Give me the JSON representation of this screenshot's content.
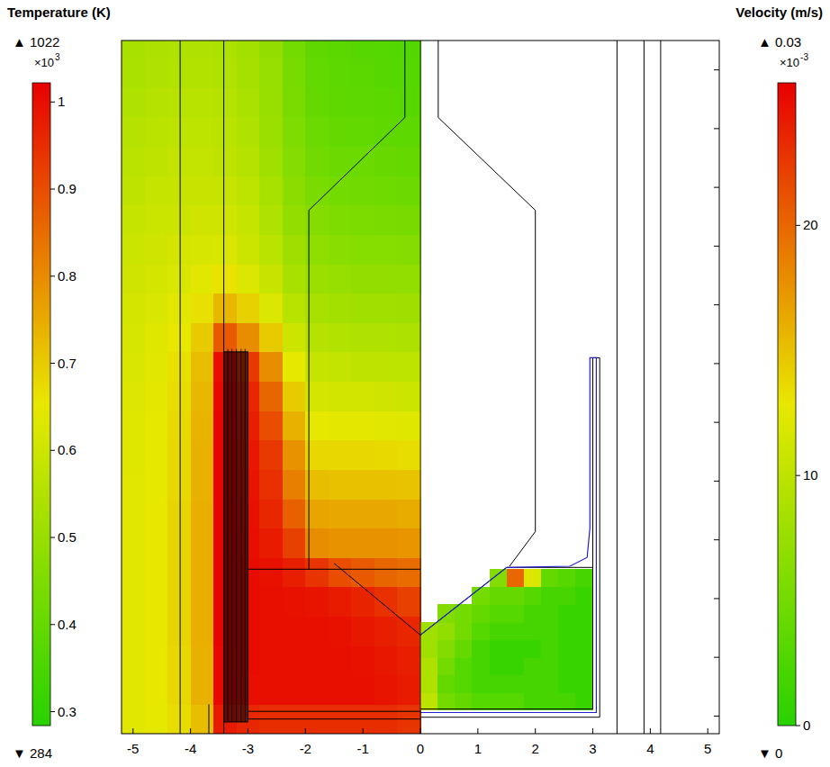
{
  "chart_data": {
    "type": "heatmap",
    "xlim": [
      -5.2,
      5.2
    ],
    "xticks": [
      -5,
      -4,
      -3,
      -2,
      -1,
      0,
      1,
      2,
      3,
      4,
      5
    ],
    "ylim": [
      -0.3,
      11.5
    ],
    "yticks": [
      0,
      1,
      2,
      3,
      4,
      5,
      6,
      7,
      8,
      9,
      10,
      11
    ],
    "tick_labels": "x",
    "temperature": {
      "title": "Temperature (K)",
      "range": [
        284,
        1022
      ],
      "range_labels": [
        "▼ 284",
        "▲ 1022"
      ],
      "multiplier": "×10",
      "exponent": "3",
      "ticks": [
        {
          "value": 300,
          "label": "0.3"
        },
        {
          "value": 400,
          "label": "0.4"
        },
        {
          "value": 500,
          "label": "0.5"
        },
        {
          "value": 600,
          "label": "0.6"
        },
        {
          "value": 700,
          "label": "0.7"
        },
        {
          "value": 800,
          "label": "0.8"
        },
        {
          "value": 900,
          "label": "0.9"
        },
        {
          "value": 1000,
          "label": "1"
        }
      ],
      "x_edges": [
        -5.2,
        -4.8,
        -4.4,
        -4.0,
        -3.6,
        -3.2,
        -2.8,
        -2.4,
        -2.0,
        -1.6,
        -1.2,
        -0.8,
        -0.4,
        0
      ],
      "y_edges": [
        -0.3,
        0.2,
        0.7,
        1.2,
        1.7,
        2.2,
        2.7,
        3.2,
        3.7,
        4.2,
        4.7,
        5.2,
        5.7,
        6.2,
        6.7,
        7.2,
        7.7,
        8.2,
        8.7,
        9.2,
        9.7,
        10.2,
        10.7,
        11.2,
        11.5
      ],
      "cells": [
        [
          640,
          650,
          670,
          720,
          980,
          960,
          950,
          950,
          950,
          950,
          950,
          950,
          940
        ],
        [
          640,
          655,
          680,
          740,
          1010,
          1000,
          1000,
          1000,
          1000,
          1000,
          1000,
          990,
          980
        ],
        [
          640,
          655,
          680,
          740,
          1010,
          1005,
          1000,
          1000,
          1000,
          1000,
          995,
          985,
          975
        ],
        [
          640,
          655,
          685,
          745,
          1015,
          1005,
          1000,
          1000,
          1000,
          995,
          985,
          975,
          960
        ],
        [
          640,
          655,
          685,
          745,
          1015,
          1005,
          1000,
          995,
          990,
          980,
          965,
          945,
          920
        ],
        [
          640,
          655,
          685,
          745,
          1015,
          1005,
          995,
          975,
          940,
          900,
          880,
          860,
          850
        ],
        [
          640,
          655,
          685,
          745,
          1015,
          1000,
          980,
          920,
          800,
          790,
          790,
          790,
          785
        ],
        [
          640,
          655,
          685,
          745,
          1015,
          995,
          960,
          870,
          760,
          755,
          755,
          755,
          750
        ],
        [
          640,
          650,
          680,
          740,
          1015,
          990,
          945,
          820,
          720,
          715,
          715,
          715,
          710
        ],
        [
          635,
          650,
          680,
          740,
          1015,
          985,
          930,
          790,
          680,
          680,
          680,
          675,
          670
        ],
        [
          635,
          650,
          675,
          735,
          1015,
          975,
          900,
          740,
          650,
          645,
          645,
          640,
          635
        ],
        [
          630,
          645,
          670,
          730,
          1010,
          960,
          860,
          700,
          615,
          610,
          610,
          605,
          600
        ],
        [
          625,
          640,
          665,
          720,
          1000,
          930,
          800,
          650,
          585,
          580,
          575,
          575,
          570
        ],
        [
          620,
          635,
          655,
          700,
          880,
          800,
          700,
          600,
          555,
          550,
          545,
          545,
          540
        ],
        [
          615,
          625,
          640,
          665,
          730,
          690,
          630,
          560,
          530,
          520,
          515,
          515,
          510
        ],
        [
          605,
          615,
          625,
          640,
          660,
          630,
          590,
          530,
          505,
          495,
          490,
          490,
          485
        ],
        [
          595,
          605,
          615,
          620,
          625,
          600,
          565,
          510,
          480,
          470,
          465,
          465,
          460
        ],
        [
          585,
          595,
          600,
          605,
          605,
          585,
          545,
          490,
          460,
          450,
          445,
          440,
          435
        ],
        [
          575,
          585,
          590,
          590,
          590,
          570,
          530,
          475,
          440,
          430,
          425,
          420,
          415
        ],
        [
          565,
          575,
          580,
          580,
          575,
          555,
          515,
          460,
          425,
          415,
          410,
          405,
          400
        ],
        [
          555,
          565,
          570,
          570,
          565,
          545,
          505,
          450,
          410,
          400,
          395,
          390,
          385
        ],
        [
          545,
          555,
          560,
          560,
          555,
          535,
          500,
          440,
          400,
          390,
          385,
          380,
          375
        ],
        [
          535,
          545,
          550,
          550,
          545,
          525,
          495,
          435,
          395,
          385,
          380,
          375,
          370
        ],
        [
          530,
          540,
          545,
          545,
          540,
          520,
          490,
          430,
          390,
          380,
          375,
          370,
          365
        ]
      ]
    },
    "velocity": {
      "title": "Velocity (m/s)",
      "range": [
        0,
        0.0257
      ],
      "range_labels": [
        "▼ 0",
        "▲ 0.03"
      ],
      "multiplier": "×10",
      "exponent": "-3",
      "ticks": [
        {
          "value": 0,
          "label": "0"
        },
        {
          "value": 0.01,
          "label": "10"
        },
        {
          "value": 0.02,
          "label": "20"
        }
      ],
      "x_edges": [
        0,
        0.3,
        0.6,
        0.9,
        1.2,
        1.5,
        1.8,
        2.1,
        2.4,
        2.7,
        3.0
      ],
      "y_edges": [
        0.1,
        0.4,
        0.7,
        1.0,
        1.3,
        1.6,
        1.9,
        2.2,
        2.5
      ],
      "cells": [
        [
          0.01,
          0.005,
          0.004,
          0.003,
          0.003,
          0.003,
          0.002,
          0.002,
          0.002,
          0.001
        ],
        [
          0.009,
          0.004,
          0.003,
          0.002,
          0.002,
          0.002,
          0.002,
          0.002,
          0.001,
          0.001
        ],
        [
          0.009,
          0.005,
          0.003,
          0.002,
          0.001,
          0.001,
          0.002,
          0.002,
          0.001,
          0.001
        ],
        [
          0.008,
          0.006,
          0.004,
          0.002,
          0.001,
          0.001,
          0.001,
          0.002,
          0.001,
          0.001
        ],
        [
          0.008,
          0.007,
          0.005,
          0.003,
          0.002,
          0.002,
          0.002,
          0.002,
          0.001,
          0.001
        ],
        [
          null,
          0.006,
          0.005,
          0.004,
          0.003,
          0.003,
          0.002,
          0.002,
          0.001,
          0.001
        ],
        [
          null,
          null,
          null,
          0.005,
          0.004,
          0.004,
          0.003,
          0.002,
          0.002,
          0.001
        ],
        [
          null,
          null,
          null,
          null,
          0.006,
          0.02,
          0.012,
          0.004,
          0.003,
          0.002
        ]
      ]
    }
  }
}
